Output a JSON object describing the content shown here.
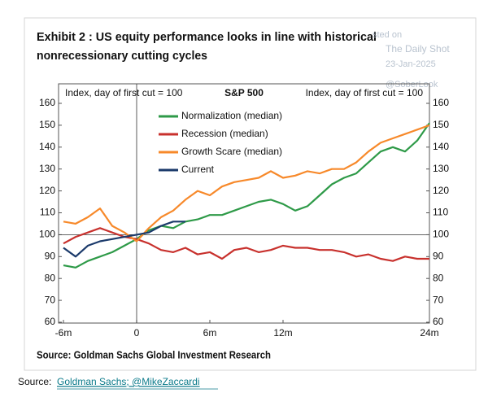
{
  "chart_data": {
    "type": "line",
    "title": [
      "Exhibit 2 : US equity performance looks in line with historical",
      "nonrecessionary cutting cycles"
    ],
    "subtitle": "S&P 500",
    "y_label": "Index, day of first cut = 100",
    "y2_label": "Index, day of first cut = 100",
    "source": "Source: Goldman Sachs Global Investment Research",
    "watermark": [
      "sted on",
      "The Daily Shot",
      "23-Jan-2025",
      "@SoberLook"
    ],
    "x": [
      -6,
      -5,
      -4,
      -3,
      -2,
      -1,
      0,
      1,
      2,
      3,
      4,
      5,
      6,
      7,
      8,
      9,
      10,
      11,
      12,
      13,
      14,
      15,
      16,
      17,
      18,
      19,
      20,
      21,
      22,
      23,
      24
    ],
    "xlim": [
      -6,
      24
    ],
    "xticks": [
      {
        "value": -6,
        "label": "-6m"
      },
      0,
      {
        "value": 6,
        "label": "6m"
      },
      {
        "value": 12,
        "label": "12m"
      },
      {
        "value": 24,
        "label": "24m"
      }
    ],
    "ylim": [
      60,
      160
    ],
    "yticks": [
      60,
      70,
      80,
      90,
      100,
      110,
      120,
      130,
      140,
      150,
      160
    ],
    "y2lim": [
      60,
      160
    ],
    "y2ticks": [
      60,
      70,
      80,
      90,
      100,
      110,
      120,
      130,
      140,
      150,
      160
    ],
    "legend": "upper left",
    "series": [
      {
        "name": "Normalization (median)",
        "color": "#2e9a48",
        "values": [
          86,
          85,
          88,
          90,
          92,
          95,
          98,
          102,
          104,
          103,
          106,
          107,
          109,
          109,
          111,
          113,
          115,
          116,
          114,
          111,
          113,
          118,
          123,
          126,
          128,
          133,
          138,
          140,
          138,
          143,
          151
        ]
      },
      {
        "name": "Recession (median)",
        "color": "#c8312d",
        "values": [
          96,
          99,
          101,
          103,
          101,
          99,
          98,
          96,
          93,
          92,
          94,
          91,
          92,
          89,
          93,
          94,
          92,
          93,
          95,
          94,
          94,
          93,
          93,
          92,
          90,
          91,
          89,
          88,
          90,
          89,
          89
        ]
      },
      {
        "name": "Growth Scare (median)",
        "color": "#f7892a",
        "values": [
          106,
          105,
          108,
          112,
          104,
          101,
          97,
          103,
          108,
          111,
          116,
          120,
          118,
          122,
          124,
          125,
          126,
          129,
          126,
          127,
          129,
          128,
          130,
          130,
          133,
          138,
          142,
          144,
          146,
          148,
          150
        ]
      },
      {
        "name": "Current",
        "color": "#1b3a6b",
        "values": [
          94,
          90,
          95,
          97,
          98,
          99,
          100,
          101,
          104,
          106,
          106,
          null,
          null,
          null,
          null,
          null,
          null,
          null,
          null,
          null,
          null,
          null,
          null,
          null,
          null,
          null,
          null,
          null,
          null,
          null,
          null
        ]
      }
    ]
  },
  "page_source": {
    "prefix": "Source:",
    "link": "Goldman Sachs; @MikeZaccardi"
  }
}
